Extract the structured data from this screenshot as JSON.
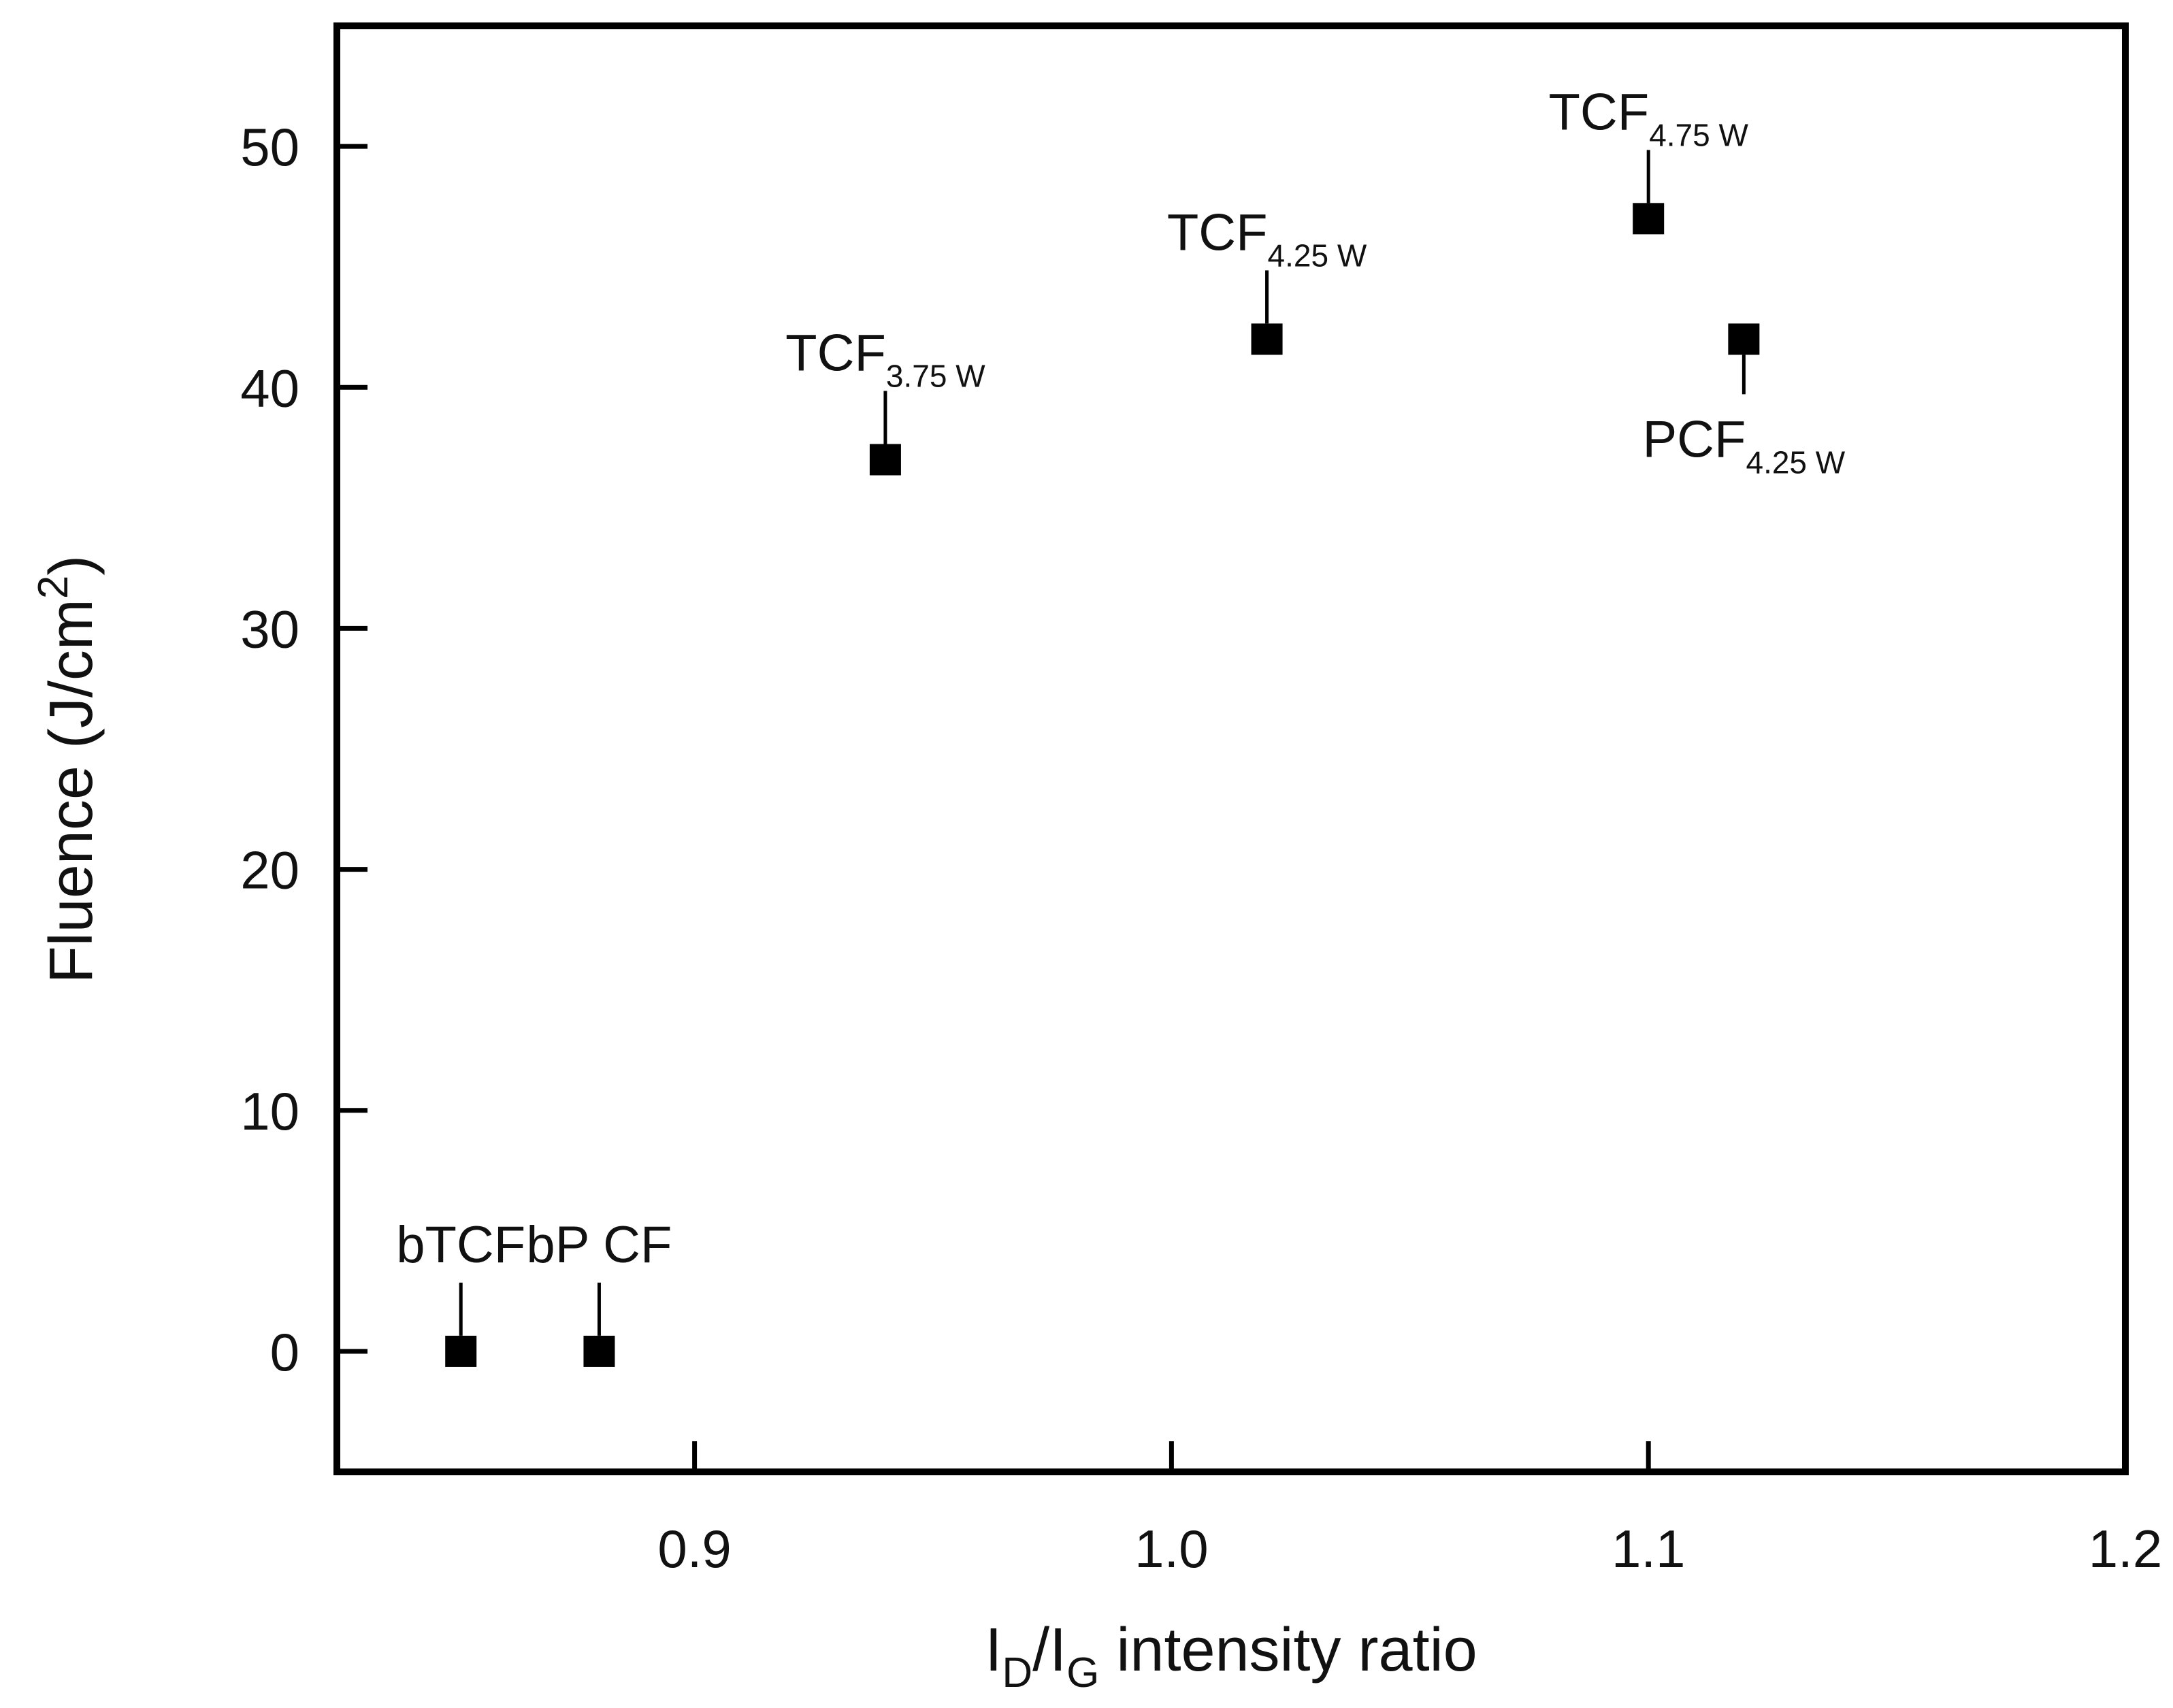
{
  "chart_data": {
    "type": "scatter",
    "title": "",
    "xlabel": {
      "parts": [
        {
          "text": "I",
          "sub": false
        },
        {
          "text": "D",
          "sub": true
        },
        {
          "text": "/I",
          "sub": false
        },
        {
          "text": "G",
          "sub": true
        },
        {
          "text": " intensity ratio",
          "sub": false
        }
      ]
    },
    "ylabel": {
      "parts": [
        {
          "text": "Fluence (J/cm",
          "sup": false
        },
        {
          "text": "2",
          "sup": true
        },
        {
          "text": ")",
          "sup": false
        }
      ]
    },
    "xlim": [
      0.825,
      1.2
    ],
    "ylim": [
      -5,
      55
    ],
    "xticks": [
      {
        "value": 0.9,
        "label": "0.9"
      },
      {
        "value": 1.0,
        "label": "1.0"
      },
      {
        "value": 1.1,
        "label": "1.1"
      },
      {
        "value": 1.2,
        "label": "1.2"
      }
    ],
    "yticks": [
      {
        "value": 0,
        "label": "0"
      },
      {
        "value": 10,
        "label": "10"
      },
      {
        "value": 20,
        "label": "20"
      },
      {
        "value": 30,
        "label": "30"
      },
      {
        "value": 40,
        "label": "40"
      },
      {
        "value": 50,
        "label": "50"
      }
    ],
    "marker": "square",
    "color": "#000000",
    "grid": false,
    "legend": "none",
    "points": [
      {
        "id": "btcf",
        "x": 0.851,
        "y": 0,
        "label": "bTCF",
        "sub": "",
        "label_pos": "above"
      },
      {
        "id": "bpcf",
        "x": 0.88,
        "y": 0,
        "label": "bP CF",
        "sub": "",
        "label_pos": "above"
      },
      {
        "id": "tcf375",
        "x": 0.94,
        "y": 37,
        "label": "TCF",
        "sub": "3.75 W",
        "label_pos": "above"
      },
      {
        "id": "tcf425",
        "x": 1.02,
        "y": 42,
        "label": "TCF",
        "sub": "4.25 W",
        "label_pos": "above"
      },
      {
        "id": "tcf475",
        "x": 1.1,
        "y": 47,
        "label": "TCF",
        "sub": "4.75 W",
        "label_pos": "above"
      },
      {
        "id": "pcf425",
        "x": 1.12,
        "y": 42,
        "label": "PCF",
        "sub": "4.25 W",
        "label_pos": "below"
      }
    ]
  }
}
